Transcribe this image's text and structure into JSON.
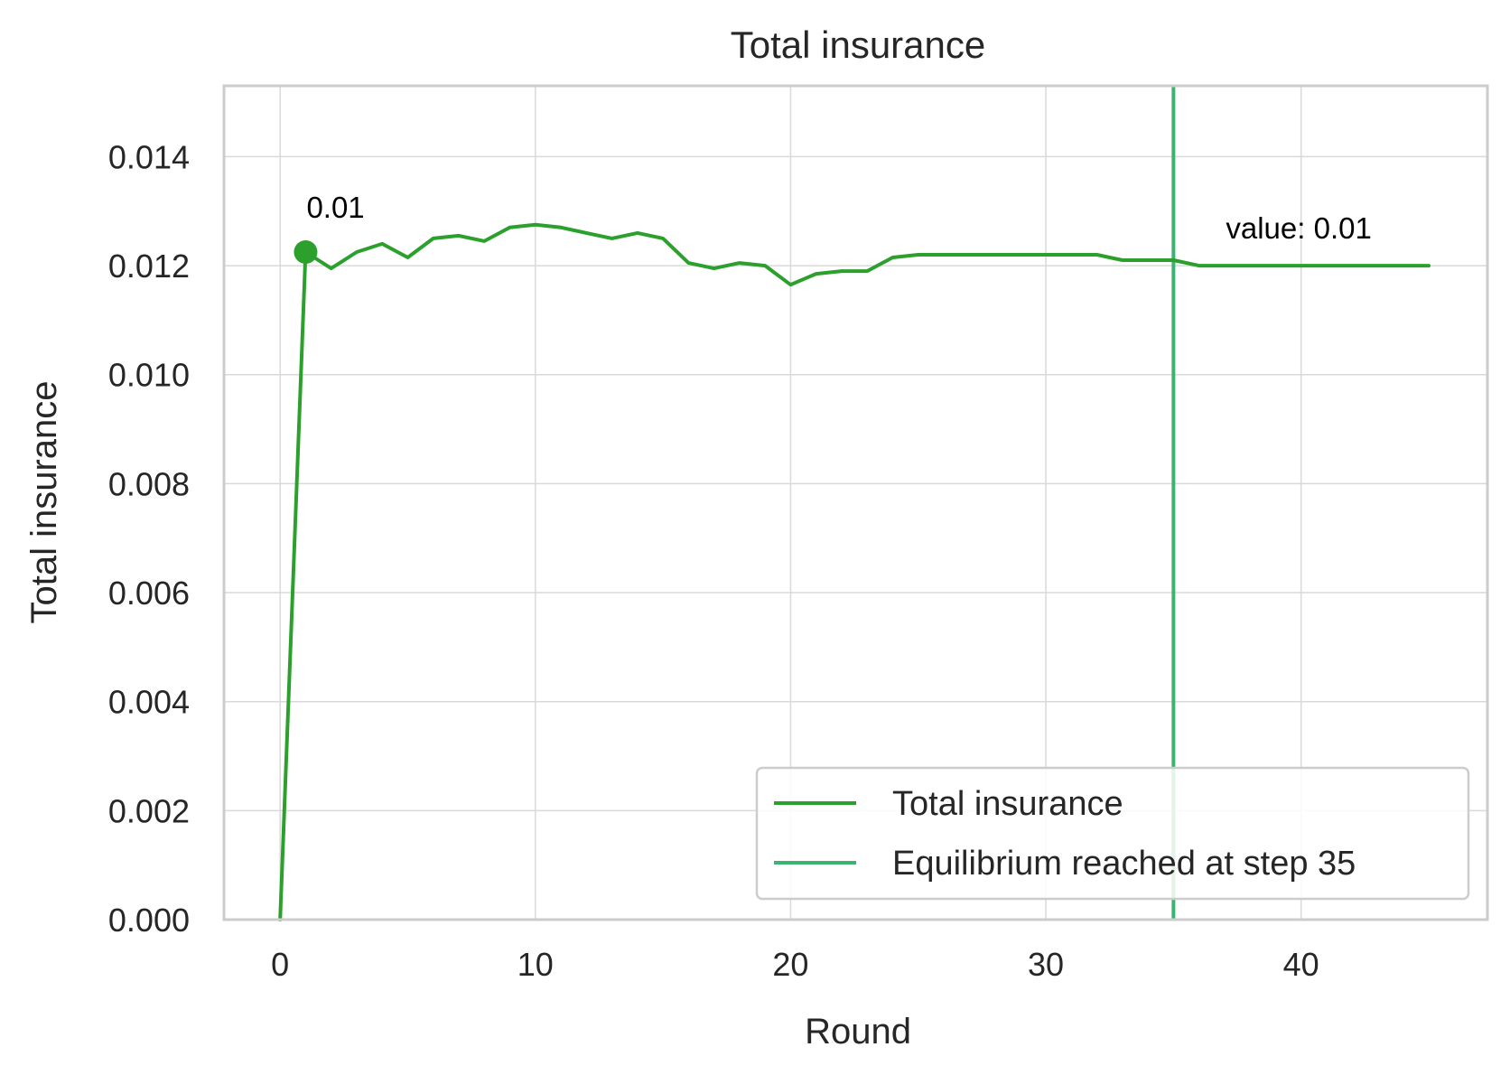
{
  "chart_data": {
    "type": "line",
    "title": "Total insurance",
    "xlabel": "Round",
    "ylabel": "Total insurance",
    "xlim": [
      -2.2,
      47.3
    ],
    "ylim": [
      0,
      0.0153
    ],
    "x_ticks": [
      0,
      10,
      20,
      30,
      40
    ],
    "x_tick_labels": [
      "0",
      "10",
      "20",
      "30",
      "40"
    ],
    "y_ticks": [
      0,
      0.002,
      0.004,
      0.006,
      0.008,
      0.01,
      0.012,
      0.014
    ],
    "y_tick_labels": [
      "0.000",
      "0.002",
      "0.004",
      "0.006",
      "0.008",
      "0.010",
      "0.012",
      "0.014"
    ],
    "grid": true,
    "series": [
      {
        "name": "Total insurance",
        "color": "#2ca02c",
        "x": [
          0,
          1,
          2,
          3,
          4,
          5,
          6,
          7,
          8,
          9,
          10,
          11,
          12,
          13,
          14,
          15,
          16,
          17,
          18,
          19,
          20,
          21,
          22,
          23,
          24,
          25,
          26,
          27,
          28,
          29,
          30,
          31,
          32,
          33,
          34,
          35,
          36,
          37,
          38,
          39,
          40,
          41,
          42,
          43,
          44,
          45
        ],
        "y": [
          0.0,
          0.01225,
          0.01195,
          0.01225,
          0.0124,
          0.01215,
          0.0125,
          0.01255,
          0.01245,
          0.0127,
          0.01275,
          0.0127,
          0.0126,
          0.0125,
          0.0126,
          0.0125,
          0.01205,
          0.01195,
          0.01205,
          0.012,
          0.01165,
          0.01185,
          0.0119,
          0.0119,
          0.01215,
          0.0122,
          0.0122,
          0.0122,
          0.0122,
          0.0122,
          0.0122,
          0.0122,
          0.0122,
          0.0121,
          0.0121,
          0.0121,
          0.012,
          0.012,
          0.012,
          0.012,
          0.012,
          0.012,
          0.012,
          0.012,
          0.012,
          0.012
        ]
      }
    ],
    "vlines": [
      {
        "name": "Equilibrium reached at step 35",
        "x": 35,
        "color": "#3cb371"
      }
    ],
    "markers": [
      {
        "x": 1,
        "y": 0.01225,
        "color": "#2ca02c"
      }
    ],
    "annotations": [
      {
        "text": "0.01",
        "x": 1,
        "y": 0.01225,
        "placement": "above-right"
      },
      {
        "text": "value: 0.01",
        "x": 35,
        "y": 0.012,
        "placement": "above-right"
      }
    ],
    "legend": {
      "position": "lower-right",
      "entries": [
        {
          "label": "Total insurance",
          "color": "#2ca02c"
        },
        {
          "label": "Equilibrium reached at step 35",
          "color": "#3cb371"
        }
      ]
    }
  }
}
